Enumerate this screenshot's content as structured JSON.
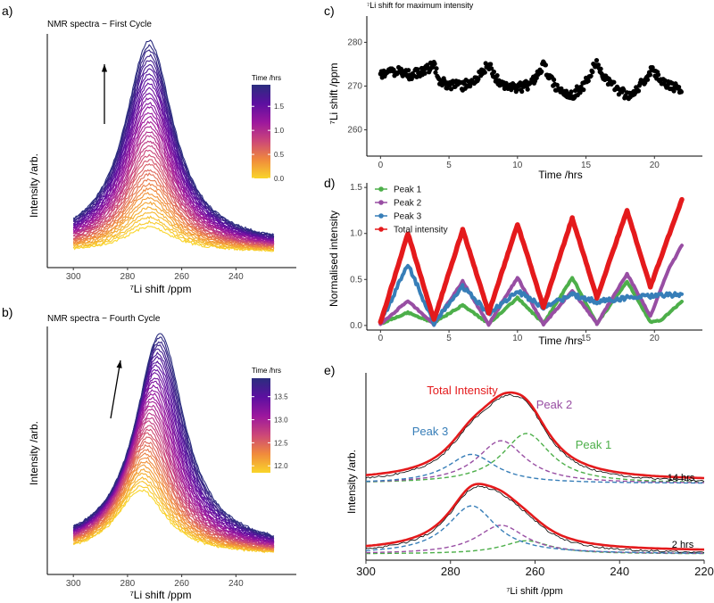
{
  "panels": {
    "a": {
      "label": "a)"
    },
    "b": {
      "label": "b)"
    },
    "c": {
      "label": "c)"
    },
    "d": {
      "label": "d)"
    },
    "e": {
      "label": "e)"
    }
  },
  "chart_data": [
    {
      "id": "a",
      "type": "line",
      "title": "NMR spectra − First Cycle",
      "xlabel": "⁷Li shift /ppm",
      "ylabel": "Intensity /arb.",
      "xlim": [
        305,
        222
      ],
      "xticks": [
        300,
        280,
        260,
        240
      ],
      "peak_center_ppm": 272,
      "peak_width_ppm": 11,
      "n_spectra": 40,
      "intensity_range_rel": [
        0.12,
        1.0
      ],
      "colorbar": {
        "title": "Time /hrs",
        "ticks": [
          "0.0",
          "0.5",
          "1.0",
          "1.5"
        ],
        "range": [
          0,
          1.95
        ],
        "colors": [
          "#f9d52a",
          "#f08a3c",
          "#cc4778",
          "#9c179e",
          "#5c0fa0",
          "#2b2d7e"
        ]
      },
      "annotation": "arrow up (increasing time)"
    },
    {
      "id": "b",
      "type": "line",
      "title": "NMR spectra − Fourth Cycle",
      "xlabel": "⁷Li shift /ppm",
      "ylabel": "Intensity /arb.",
      "xlim": [
        305,
        222
      ],
      "xticks": [
        300,
        280,
        260,
        240
      ],
      "peak_center_start_ppm": 275,
      "peak_center_end_ppm": 268,
      "peak_width_ppm": 11,
      "n_spectra": 40,
      "intensity_range_rel": [
        0.3,
        1.0
      ],
      "colorbar": {
        "title": "Time /hrs",
        "ticks": [
          "12.0",
          "12.5",
          "13.0",
          "13.5"
        ],
        "range": [
          11.85,
          13.9
        ],
        "colors": [
          "#f9d52a",
          "#f08a3c",
          "#cc4778",
          "#9c179e",
          "#5c0fa0",
          "#2b2d7e"
        ]
      },
      "annotation": "arrow up-right (increasing time)"
    },
    {
      "id": "c",
      "type": "scatter",
      "title": "⁷Li shift for maximum intensity",
      "xlabel": "Time /hrs",
      "ylabel": "⁷Li shift /ppm",
      "xlim": [
        -1,
        23.5
      ],
      "ylim": [
        254,
        286
      ],
      "xticks": [
        0,
        5,
        10,
        15,
        20
      ],
      "yticks": [
        260,
        270,
        280
      ],
      "trend_points": [
        [
          0,
          273
        ],
        [
          1,
          273.5
        ],
        [
          2,
          272.5
        ],
        [
          3,
          273
        ],
        [
          3.9,
          275
        ],
        [
          4.3,
          271
        ],
        [
          5,
          270.5
        ],
        [
          6,
          270
        ],
        [
          7,
          271.5
        ],
        [
          7.9,
          275
        ],
        [
          8.5,
          271.5
        ],
        [
          9,
          270
        ],
        [
          10,
          269.5
        ],
        [
          11,
          270.5
        ],
        [
          11.9,
          275
        ],
        [
          12.5,
          271
        ],
        [
          13.3,
          268.5
        ],
        [
          14,
          268
        ],
        [
          14.8,
          270
        ],
        [
          15.8,
          275.5
        ],
        [
          16.3,
          272
        ],
        [
          17,
          270
        ],
        [
          18,
          268
        ],
        [
          18.5,
          268.5
        ],
        [
          19.8,
          273.5
        ],
        [
          20.5,
          271.5
        ],
        [
          21,
          270.5
        ],
        [
          22,
          269
        ]
      ],
      "point_color": "#000000"
    },
    {
      "id": "d",
      "type": "line",
      "xlabel": "Time /hrs",
      "ylabel": "Normalised intensity",
      "xlim": [
        -1,
        23.5
      ],
      "ylim": [
        -0.05,
        1.55
      ],
      "xticks": [
        0,
        5,
        10,
        15,
        20
      ],
      "yticks": [
        0.0,
        0.5,
        1.0,
        1.5
      ],
      "legend": "top-left",
      "series": [
        {
          "name": "Peak 1",
          "color": "#4daf4a",
          "points": [
            [
              0,
              0.02
            ],
            [
              2,
              0.14
            ],
            [
              3.9,
              0.03
            ],
            [
              6,
              0.22
            ],
            [
              7.9,
              0.02
            ],
            [
              10,
              0.3
            ],
            [
              11.9,
              0.02
            ],
            [
              14,
              0.52
            ],
            [
              15.8,
              0.02
            ],
            [
              18,
              0.48
            ],
            [
              19.7,
              0.04
            ],
            [
              20.5,
              0.06
            ],
            [
              22,
              0.26
            ]
          ]
        },
        {
          "name": "Peak 2",
          "color": "#984ea3",
          "points": [
            [
              0,
              0.01
            ],
            [
              2,
              0.27
            ],
            [
              3.9,
              0.01
            ],
            [
              6,
              0.48
            ],
            [
              7.9,
              0.01
            ],
            [
              10,
              0.52
            ],
            [
              11.9,
              0.01
            ],
            [
              14,
              0.38
            ],
            [
              15.8,
              0.02
            ],
            [
              18,
              0.56
            ],
            [
              19.7,
              0.1
            ],
            [
              21,
              0.6
            ],
            [
              22,
              0.87
            ]
          ]
        },
        {
          "name": "Peak 3",
          "color": "#377eb8",
          "points": [
            [
              0,
              0.03
            ],
            [
              2,
              0.66
            ],
            [
              3.9,
              0.03
            ],
            [
              6,
              0.42
            ],
            [
              7.9,
              0.13
            ],
            [
              10,
              0.37
            ],
            [
              11.9,
              0.2
            ],
            [
              14,
              0.33
            ],
            [
              15.8,
              0.26
            ],
            [
              18,
              0.3
            ],
            [
              20,
              0.32
            ],
            [
              22,
              0.34
            ]
          ]
        },
        {
          "name": "Total intensity",
          "color": "#e41a1c",
          "points": [
            [
              0,
              0.03
            ],
            [
              2,
              1.0
            ],
            [
              3.9,
              0.06
            ],
            [
              6,
              1.04
            ],
            [
              7.9,
              0.14
            ],
            [
              10,
              1.1
            ],
            [
              11.9,
              0.2
            ],
            [
              14,
              1.17
            ],
            [
              15.8,
              0.3
            ],
            [
              18,
              1.25
            ],
            [
              19.7,
              0.42
            ],
            [
              22,
              1.37
            ]
          ]
        }
      ]
    },
    {
      "id": "e",
      "type": "line",
      "xlabel": "⁷Li shift /ppm",
      "ylabel": "Intensity /arb.",
      "xlim": [
        300,
        220
      ],
      "xticks": [
        300,
        280,
        260,
        240,
        220
      ],
      "annotations": {
        "total": "Total Intensity",
        "peak1": "Peak 1",
        "peak2": "Peak 2",
        "peak3": "Peak 3",
        "t14": "14 hrs",
        "t2": "2 hrs"
      },
      "components": {
        "t14": {
          "peak3": {
            "center": 275,
            "height": 0.32
          },
          "peak2": {
            "center": 268,
            "height": 0.47
          },
          "peak1": {
            "center": 262,
            "height": 0.55
          }
        },
        "t2": {
          "peak3": {
            "center": 275,
            "height": 0.62
          },
          "peak2": {
            "center": 268,
            "height": 0.37
          },
          "peak1": {
            "center": 262,
            "height": 0.17
          }
        }
      },
      "colors": {
        "total": "#e41a1c",
        "peak1": "#4daf4a",
        "peak2": "#984ea3",
        "peak3": "#377eb8",
        "data": "#000000"
      }
    }
  ]
}
